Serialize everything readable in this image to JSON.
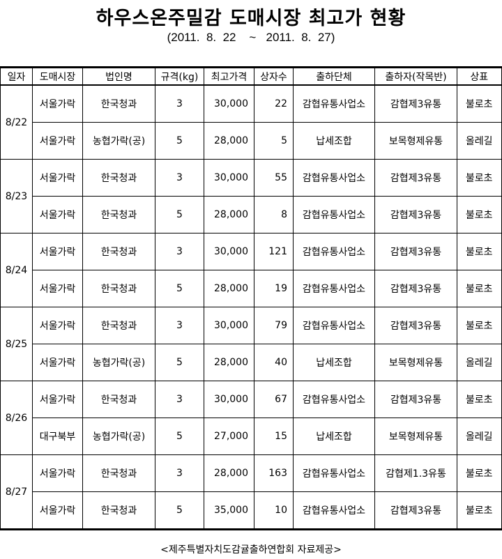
{
  "title": "하우스온주밀감 도매시장 최고가 현황",
  "subtitle": "(2011.  8.  22    ~   2011.  8.  27)",
  "columns": [
    "일자",
    "도매시장",
    "법인명",
    "규격(kg)",
    "최고가격",
    "상자수",
    "출하단체",
    "출하자(작목반)",
    "상표"
  ],
  "groups": [
    {
      "date": "8/22",
      "rows": [
        [
          "서울가락",
          "한국청과",
          "3",
          "30,000",
          "22",
          "감협유통사업소",
          "감협제3유통",
          "불로초"
        ],
        [
          "서울가락",
          "농협가락(공)",
          "5",
          "28,000",
          "5",
          "납세조합",
          "보목형제유통",
          "올레길"
        ]
      ]
    },
    {
      "date": "8/23",
      "rows": [
        [
          "서울가락",
          "한국청과",
          "3",
          "30,000",
          "55",
          "감협유통사업소",
          "감협제3유통",
          "불로초"
        ],
        [
          "서울가락",
          "한국청과",
          "5",
          "28,000",
          "8",
          "감협유통사업소",
          "감협제3유통",
          "불로초"
        ]
      ]
    },
    {
      "date": "8/24",
      "rows": [
        [
          "서울가락",
          "한국청과",
          "3",
          "30,000",
          "121",
          "감협유통사업소",
          "감협제3유통",
          "불로초"
        ],
        [
          "서울가락",
          "한국청과",
          "5",
          "28,000",
          "19",
          "감협유통사업소",
          "감협제3유통",
          "불로초"
        ]
      ]
    },
    {
      "date": "8/25",
      "rows": [
        [
          "서울가락",
          "한국청과",
          "3",
          "30,000",
          "79",
          "감협유통사업소",
          "감협제3유통",
          "불로초"
        ],
        [
          "서울가락",
          "농협가락(공)",
          "5",
          "28,000",
          "40",
          "납세조합",
          "보목형제유통",
          "올레길"
        ]
      ]
    },
    {
      "date": "8/26",
      "rows": [
        [
          "서울가락",
          "한국청과",
          "3",
          "30,000",
          "67",
          "감협유통사업소",
          "감협제3유통",
          "불로초"
        ],
        [
          "대구북부",
          "농협가락(공)",
          "5",
          "27,000",
          "15",
          "납세조합",
          "보목형제유통",
          "올레길"
        ]
      ]
    },
    {
      "date": "8/27",
      "rows": [
        [
          "서울가락",
          "한국청과",
          "3",
          "28,000",
          "163",
          "감협유통사업소",
          "감협제1.3유통",
          "불로초"
        ],
        [
          "서울가락",
          "한국청과",
          "5",
          "35,000",
          "10",
          "감협유통사업소",
          "감협제3유통",
          "불로초"
        ]
      ]
    }
  ],
  "footer": "<제주특별자치도감귤출하연합회 자료제공>"
}
